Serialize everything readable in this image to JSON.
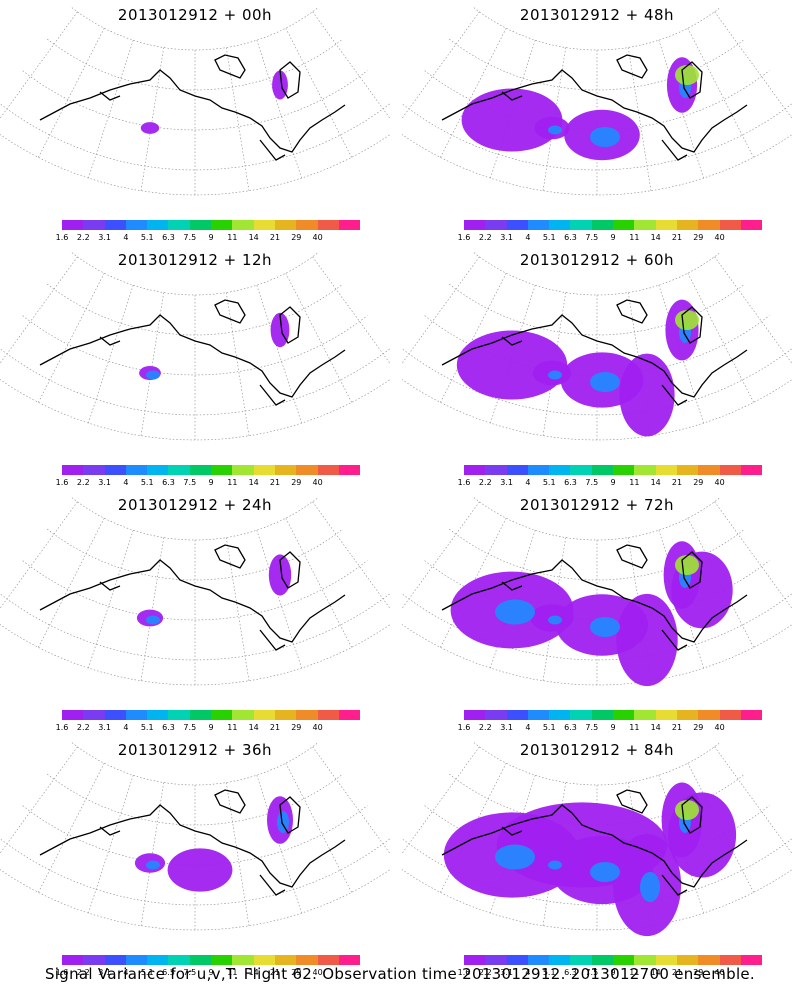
{
  "legend": {
    "labels": [
      "1.6",
      "2.2",
      "3.1",
      "4",
      "5.1",
      "6.3",
      "7.5",
      "9",
      "11",
      "14",
      "21",
      "29",
      "40"
    ],
    "colors": [
      "#a020f0",
      "#7a3cf0",
      "#3c50ff",
      "#1e8cff",
      "#00b4f0",
      "#00d2b4",
      "#00c864",
      "#28d200",
      "#a0e632",
      "#e6dc32",
      "#e6b41e",
      "#f08c28",
      "#f05a46",
      "#ff1e8c"
    ]
  },
  "panels": [
    {
      "title": "2013012912 + 00h",
      "level": 0.05
    },
    {
      "title": "2013012912 + 48h",
      "level": 0.55
    },
    {
      "title": "2013012912 + 12h",
      "level": 0.15
    },
    {
      "title": "2013012912 + 60h",
      "level": 0.65
    },
    {
      "title": "2013012912 + 24h",
      "level": 0.28
    },
    {
      "title": "2013012912 + 72h",
      "level": 0.78
    },
    {
      "title": "2013012912 + 36h",
      "level": 0.4
    },
    {
      "title": "2013012912 + 84h",
      "level": 0.92
    }
  ],
  "footer": "Signal Variance for u,v,T. Flight 62. Observation time 2013012912. 2013012700 ensemble."
}
